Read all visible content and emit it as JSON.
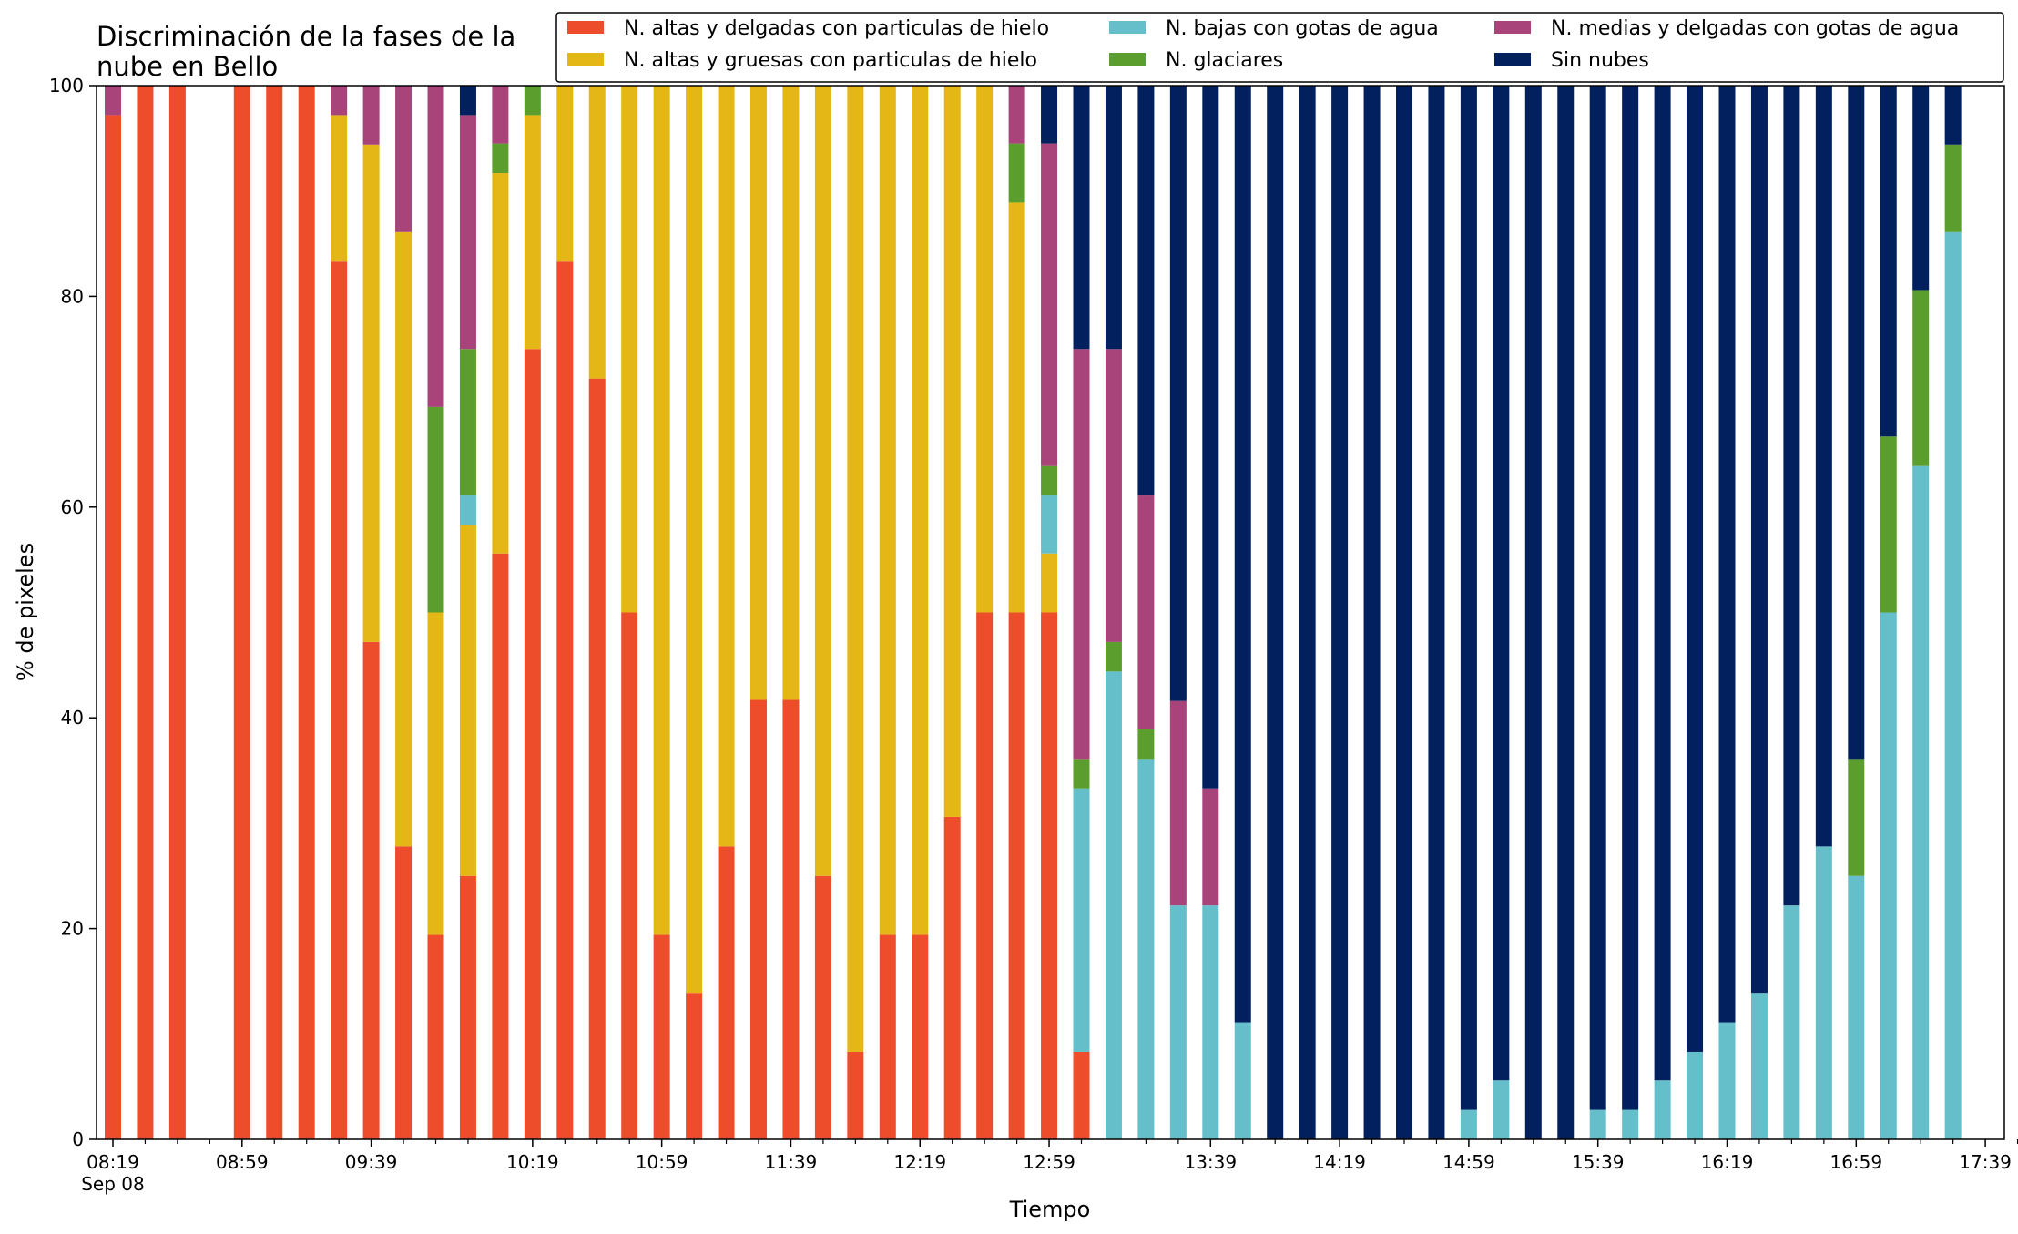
{
  "chart_data": {
    "type": "bar",
    "stacked": true,
    "title": "Discriminación de la fases de la nube en Bello",
    "title_lines": [
      "Discriminación de la fases de la",
      "nube en Bello"
    ],
    "xlabel": "Tiempo",
    "ylabel": "% de pixeles",
    "ylim": [
      0,
      100
    ],
    "yticks": [
      0,
      20,
      40,
      60,
      80,
      100
    ],
    "grid": false,
    "legend_position": "top-right",
    "x": [
      "08:19",
      "08:29",
      "08:39",
      "08:49",
      "08:59",
      "09:09",
      "09:19",
      "09:29",
      "09:39",
      "09:49",
      "09:59",
      "10:09",
      "10:14",
      "10:19",
      "10:29",
      "10:39",
      "10:49",
      "10:59",
      "11:09",
      "11:19",
      "11:29",
      "11:39",
      "11:49",
      "11:59",
      "12:09",
      "12:19",
      "12:29",
      "12:39",
      "12:49",
      "12:59",
      "13:09",
      "13:14",
      "13:19",
      "13:29",
      "13:39",
      "13:49",
      "13:59",
      "14:09",
      "14:19",
      "14:29",
      "14:39",
      "14:49",
      "14:59",
      "15:09",
      "15:19",
      "15:29",
      "15:39",
      "15:49",
      "15:59",
      "16:09",
      "16:19",
      "16:29",
      "16:39",
      "16:49",
      "16:59",
      "17:09",
      "17:19",
      "17:29",
      "17:39",
      "17:49"
    ],
    "x_tick_labels": [
      {
        "x": "08:19",
        "label": "08:19",
        "sublabel": "Sep 08"
      },
      {
        "x": "08:59",
        "label": "08:59"
      },
      {
        "x": "09:39",
        "label": "09:39"
      },
      {
        "x": "10:19",
        "label": "10:19"
      },
      {
        "x": "10:59",
        "label": "10:59"
      },
      {
        "x": "11:39",
        "label": "11:39"
      },
      {
        "x": "12:19",
        "label": "12:19"
      },
      {
        "x": "12:59",
        "label": "12:59"
      },
      {
        "x": "13:39",
        "label": "13:39"
      },
      {
        "x": "14:19",
        "label": "14:19"
      },
      {
        "x": "14:59",
        "label": "14:59"
      },
      {
        "x": "15:39",
        "label": "15:39"
      },
      {
        "x": "16:19",
        "label": "16:19"
      },
      {
        "x": "16:59",
        "label": "16:59"
      },
      {
        "x": "17:39",
        "label": "17:39"
      }
    ],
    "x_minor_ticks": [
      "08:29",
      "08:39",
      "08:49",
      "09:09",
      "09:19",
      "09:29",
      "09:49",
      "09:59",
      "10:09",
      "10:29",
      "10:39",
      "10:49",
      "11:09",
      "11:19",
      "11:29",
      "11:49",
      "11:59",
      "12:09",
      "12:29",
      "12:39",
      "12:49",
      "13:09",
      "13:19",
      "13:29",
      "13:49",
      "13:59",
      "14:09",
      "14:29",
      "14:39",
      "14:49",
      "15:09",
      "15:19",
      "15:29",
      "15:49",
      "15:59",
      "16:09",
      "16:29",
      "16:39",
      "16:49",
      "17:09",
      "17:19",
      "17:29",
      "17:49"
    ],
    "series": [
      {
        "name": "N. altas y delgadas con particulas de hielo",
        "color": "#ee4d2c",
        "values": [
          97.2,
          100,
          100,
          0,
          100,
          100,
          100,
          83.3,
          47.2,
          27.8,
          19.4,
          25,
          55.6,
          75,
          83.3,
          72.2,
          50,
          19.4,
          13.9,
          27.8,
          41.7,
          41.7,
          25,
          8.3,
          19.4,
          19.4,
          30.6,
          50,
          50,
          50,
          8.3,
          0,
          0,
          0,
          0,
          0,
          0,
          0,
          0,
          0,
          0,
          0,
          0,
          0,
          0,
          0,
          0,
          0,
          0,
          0,
          0,
          0,
          0,
          0,
          0,
          0,
          0,
          0,
          0,
          0
        ]
      },
      {
        "name": "N. altas y gruesas con particulas de hielo",
        "color": "#e4b717",
        "values": [
          0,
          0,
          0,
          0,
          0,
          0,
          0,
          13.9,
          47.2,
          58.3,
          30.6,
          33.3,
          36.1,
          22.2,
          16.7,
          27.8,
          50,
          80.6,
          86.1,
          72.2,
          58.3,
          58.3,
          75,
          91.7,
          80.6,
          80.6,
          69.4,
          50,
          38.9,
          5.6,
          0,
          0,
          0,
          0,
          0,
          0,
          0,
          0,
          0,
          0,
          0,
          0,
          0,
          0,
          0,
          0,
          0,
          0,
          0,
          0,
          0,
          0,
          0,
          0,
          0,
          0,
          0,
          0,
          0,
          0
        ]
      },
      {
        "name": "N. bajas con gotas de agua",
        "color": "#65bfca",
        "values": [
          0,
          0,
          0,
          0,
          0,
          0,
          0,
          0,
          0,
          0,
          0,
          2.8,
          0,
          0,
          0,
          0,
          0,
          0,
          0,
          0,
          0,
          0,
          0,
          0,
          0,
          0,
          0,
          0,
          0,
          5.5,
          25,
          44.4,
          36.1,
          22.2,
          22.2,
          11.1,
          0,
          0,
          0,
          0,
          0,
          0,
          2.8,
          5.6,
          0,
          0,
          2.8,
          2.8,
          5.6,
          8.3,
          11.1,
          13.9,
          22.2,
          27.8,
          25,
          50,
          63.9,
          86.1,
          0,
          0
        ]
      },
      {
        "name": "N. glaciares",
        "color": "#5c9e2e",
        "values": [
          0,
          0,
          0,
          0,
          0,
          0,
          0,
          0,
          0,
          0,
          19.5,
          13.9,
          2.8,
          2.8,
          0,
          0,
          0,
          0,
          0,
          0,
          0,
          0,
          0,
          0,
          0,
          0,
          0,
          0,
          5.6,
          2.8,
          2.8,
          2.8,
          2.8,
          0,
          0,
          0,
          0,
          0,
          0,
          0,
          0,
          0,
          0,
          0,
          0,
          0,
          0,
          0,
          0,
          0,
          0,
          0,
          0,
          0,
          11.1,
          16.7,
          16.7,
          8.3,
          0,
          0
        ]
      },
      {
        "name": "N. medias y delgadas con gotas de agua",
        "color": "#a8447a",
        "values": [
          2.8,
          0,
          0,
          0,
          0,
          0,
          0,
          2.8,
          5.6,
          13.9,
          30.5,
          22.2,
          5.5,
          0,
          0,
          0,
          0,
          0,
          0,
          0,
          0,
          0,
          0,
          0,
          0,
          0,
          0,
          0,
          5.5,
          30.6,
          38.9,
          27.8,
          22.2,
          19.4,
          11.1,
          0,
          0,
          0,
          0,
          0,
          0,
          0,
          0,
          0,
          0,
          0,
          0,
          0,
          0,
          0,
          0,
          0,
          0,
          0,
          0,
          0,
          0,
          0,
          0,
          0
        ]
      },
      {
        "name": "Sin nubes",
        "color": "#02205e",
        "values": [
          0,
          0,
          0,
          0,
          0,
          0,
          0,
          0,
          0,
          0,
          0,
          2.8,
          0,
          0,
          0,
          0,
          0,
          0,
          0,
          0,
          0,
          0,
          0,
          0,
          0,
          0,
          0,
          0,
          0,
          5.5,
          25,
          25,
          38.9,
          58.4,
          66.7,
          88.9,
          100,
          100,
          100,
          100,
          100,
          100,
          97.2,
          94.4,
          100,
          100,
          97.2,
          97.2,
          94.4,
          91.7,
          88.9,
          86.1,
          77.8,
          72.2,
          63.9,
          33.3,
          19.4,
          5.6,
          0,
          0
        ]
      }
    ]
  }
}
